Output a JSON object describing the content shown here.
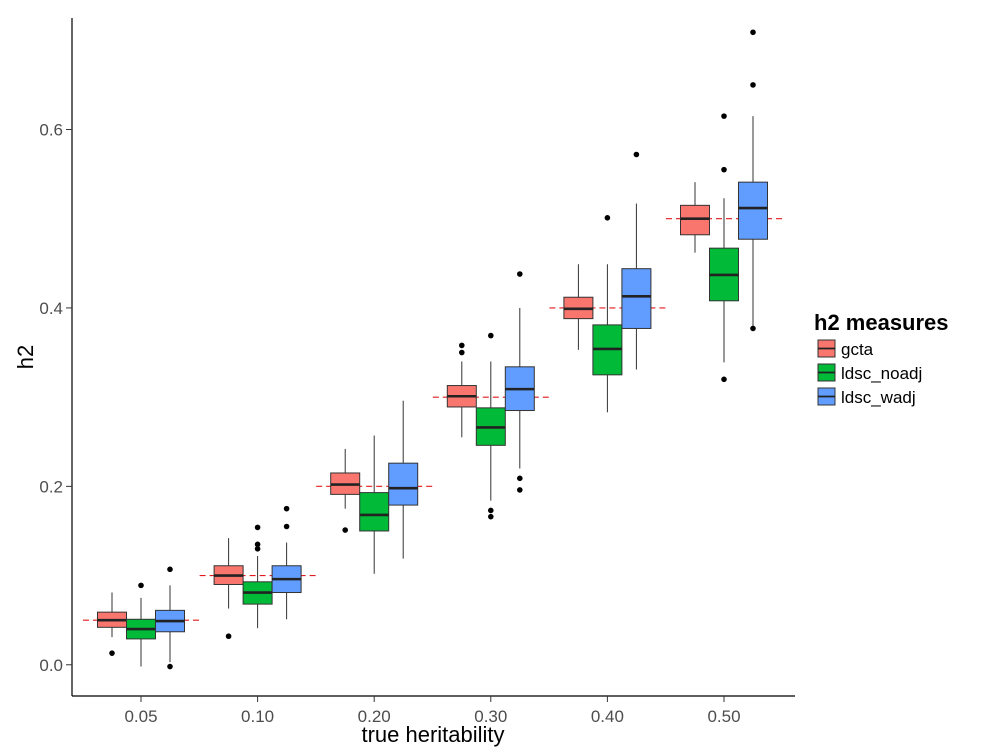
{
  "chart_data": {
    "type": "box",
    "xlabel": "true heritability",
    "ylabel": "h2",
    "categories": [
      "0.05",
      "0.10",
      "0.20",
      "0.30",
      "0.40",
      "0.50"
    ],
    "ylim": [
      -0.035,
      0.725
    ],
    "yticks": [
      "0.0",
      "0.2",
      "0.4",
      "0.6"
    ],
    "grid": false,
    "legend": {
      "title": "h2 measures",
      "position": "right",
      "entries": [
        "gcta",
        "ldsc_noadj",
        "ldsc_wadj"
      ]
    },
    "reference_lines": [
      0.05,
      0.1,
      0.2,
      0.3,
      0.4,
      0.5
    ],
    "reference_line_color": "#e41a1c",
    "series": [
      {
        "name": "gcta",
        "color": "#F8766D",
        "boxes": [
          {
            "whisker_low": 0.031,
            "q1": 0.042,
            "median": 0.05,
            "q3": 0.059,
            "whisker_high": 0.081,
            "outliers": [
              0.013
            ]
          },
          {
            "whisker_low": 0.063,
            "q1": 0.09,
            "median": 0.1,
            "q3": 0.111,
            "whisker_high": 0.142,
            "outliers": [
              0.032
            ]
          },
          {
            "whisker_low": 0.175,
            "q1": 0.191,
            "median": 0.202,
            "q3": 0.215,
            "whisker_high": 0.242,
            "outliers": [
              0.151
            ]
          },
          {
            "whisker_low": 0.255,
            "q1": 0.289,
            "median": 0.301,
            "q3": 0.313,
            "whisker_high": 0.34,
            "outliers": [
              0.35,
              0.358
            ]
          },
          {
            "whisker_low": 0.353,
            "q1": 0.388,
            "median": 0.399,
            "q3": 0.412,
            "whisker_high": 0.449,
            "outliers": []
          },
          {
            "whisker_low": 0.462,
            "q1": 0.482,
            "median": 0.5,
            "q3": 0.515,
            "whisker_high": 0.541,
            "outliers": []
          }
        ]
      },
      {
        "name": "ldsc_noadj",
        "color": "#00BA38",
        "boxes": [
          {
            "whisker_low": -0.002,
            "q1": 0.029,
            "median": 0.04,
            "q3": 0.051,
            "whisker_high": 0.075,
            "outliers": [
              0.089
            ]
          },
          {
            "whisker_low": 0.041,
            "q1": 0.068,
            "median": 0.081,
            "q3": 0.093,
            "whisker_high": 0.122,
            "outliers": [
              0.13,
              0.135,
              0.154
            ]
          },
          {
            "whisker_low": 0.102,
            "q1": 0.15,
            "median": 0.168,
            "q3": 0.193,
            "whisker_high": 0.257,
            "outliers": []
          },
          {
            "whisker_low": 0.184,
            "q1": 0.246,
            "median": 0.266,
            "q3": 0.288,
            "whisker_high": 0.34,
            "outliers": [
              0.166,
              0.173,
              0.369
            ]
          },
          {
            "whisker_low": 0.283,
            "q1": 0.325,
            "median": 0.354,
            "q3": 0.381,
            "whisker_high": 0.449,
            "outliers": [
              0.501
            ]
          },
          {
            "whisker_low": 0.339,
            "q1": 0.408,
            "median": 0.437,
            "q3": 0.467,
            "whisker_high": 0.523,
            "outliers": [
              0.32,
              0.555,
              0.615
            ]
          }
        ]
      },
      {
        "name": "ldsc_wadj",
        "color": "#619CFF",
        "boxes": [
          {
            "whisker_low": 0.003,
            "q1": 0.037,
            "median": 0.049,
            "q3": 0.061,
            "whisker_high": 0.089,
            "outliers": [
              -0.002,
              0.107
            ]
          },
          {
            "whisker_low": 0.051,
            "q1": 0.081,
            "median": 0.096,
            "q3": 0.111,
            "whisker_high": 0.137,
            "outliers": [
              0.155,
              0.175
            ]
          },
          {
            "whisker_low": 0.119,
            "q1": 0.179,
            "median": 0.198,
            "q3": 0.226,
            "whisker_high": 0.296,
            "outliers": []
          },
          {
            "whisker_low": 0.22,
            "q1": 0.285,
            "median": 0.309,
            "q3": 0.334,
            "whisker_high": 0.4,
            "outliers": [
              0.196,
              0.209,
              0.438
            ]
          },
          {
            "whisker_low": 0.331,
            "q1": 0.377,
            "median": 0.413,
            "q3": 0.444,
            "whisker_high": 0.517,
            "outliers": [
              0.572
            ]
          },
          {
            "whisker_low": 0.376,
            "q1": 0.477,
            "median": 0.512,
            "q3": 0.541,
            "whisker_high": 0.615,
            "outliers": [
              0.377,
              0.65,
              0.709
            ]
          }
        ]
      }
    ]
  }
}
